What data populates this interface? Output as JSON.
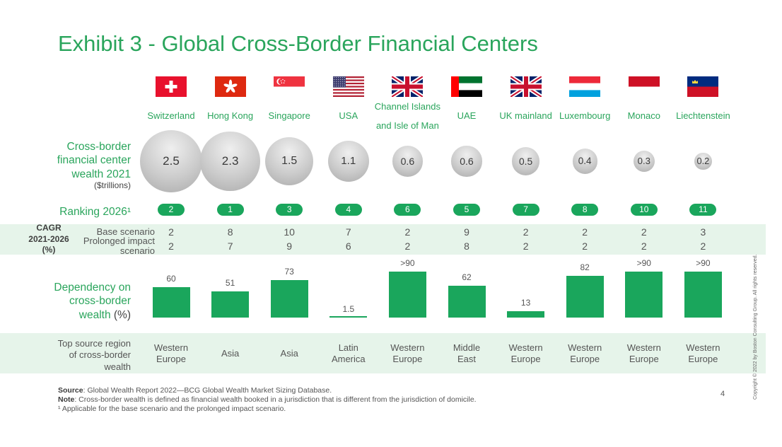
{
  "title": "Exhibit 3 - Global Cross-Border Financial Centers",
  "row_labels": {
    "wealth": [
      "Cross-border",
      "financial center",
      "wealth 2021"
    ],
    "wealth_unit": "($trillions)",
    "ranking": "Ranking 2026¹",
    "cagr": [
      "CAGR",
      "2021-2026",
      "(%)"
    ],
    "base_scenario": "Base scenario",
    "prolonged_scenario": [
      "Prolonged impact",
      "scenario"
    ],
    "dependency": [
      "Dependency on",
      "cross-border",
      "wealth"
    ],
    "dependency_unit": "(%)",
    "region": [
      "Top source region",
      "of cross-border",
      "wealth"
    ]
  },
  "colors": {
    "accent": "#2aa55c",
    "bar": "#1aa65c",
    "band": "#e6f4ea"
  },
  "chart_data": {
    "type": "table",
    "title": "Exhibit 3 - Global Cross-Border Financial Centers",
    "categories": [
      "Switzerland",
      "Hong Kong",
      "Singapore",
      "USA",
      "Channel Islands and Isle of Man",
      "UAE",
      "UK mainland",
      "Luxembourg",
      "Monaco",
      "Liechtenstein"
    ],
    "category_lines": [
      [
        "Switzerland"
      ],
      [
        "Hong Kong"
      ],
      [
        "Singapore"
      ],
      [
        "USA"
      ],
      [
        "Channel Islands",
        "and Isle of Man"
      ],
      [
        "UAE"
      ],
      [
        "UK mainland"
      ],
      [
        "Luxembourg"
      ],
      [
        "Monaco"
      ],
      [
        "Liechtenstein"
      ]
    ],
    "flags": [
      "switzerland",
      "hong-kong",
      "singapore",
      "usa",
      "uk",
      "uae",
      "uk",
      "luxembourg",
      "monaco",
      "liechtenstein"
    ],
    "wealth_2021": {
      "unit": "$ trillions",
      "values": [
        2.5,
        2.3,
        1.5,
        1.1,
        0.6,
        0.6,
        0.5,
        0.4,
        0.3,
        0.2
      ],
      "labels": [
        "2.5",
        "2.3",
        "1.5",
        "1.1",
        "0.6",
        "0.6",
        "0.5",
        "0.4",
        "0.3",
        "0.2"
      ]
    },
    "ranking_2026": [
      2,
      1,
      3,
      4,
      6,
      5,
      7,
      8,
      10,
      11
    ],
    "cagr_2021_2026": {
      "unit": "%",
      "series": [
        {
          "name": "Base scenario",
          "values": [
            2,
            8,
            10,
            7,
            2,
            9,
            2,
            2,
            2,
            3
          ]
        },
        {
          "name": "Prolonged impact scenario",
          "values": [
            2,
            7,
            9,
            6,
            2,
            8,
            2,
            2,
            2,
            2
          ]
        }
      ]
    },
    "dependency": {
      "type": "bar",
      "unit": "%",
      "values": [
        60,
        51,
        73,
        1.5,
        90,
        62,
        13,
        82,
        90,
        90
      ],
      "labels": [
        "60",
        "51",
        "73",
        "1.5",
        ">90",
        "62",
        "13",
        "82",
        ">90",
        ">90"
      ],
      "ylim": [
        0,
        100
      ]
    },
    "top_source_region": [
      [
        "Western",
        "Europe"
      ],
      [
        "Asia"
      ],
      [
        "Asia"
      ],
      [
        "Latin",
        "America"
      ],
      [
        "Western",
        "Europe"
      ],
      [
        "Middle",
        "East"
      ],
      [
        "Western",
        "Europe"
      ],
      [
        "Western",
        "Europe"
      ],
      [
        "Western",
        "Europe"
      ],
      [
        "Western",
        "Europe"
      ]
    ]
  },
  "footer": {
    "source_label": "Source",
    "source_text": ": Global Wealth Report 2022—BCG Global Wealth Market Sizing Database.",
    "note_label": "Note",
    "note_text": ": Cross-border wealth is defined as financial wealth booked in a jurisdiction that is different from the jurisdiction of domicile.",
    "footnote": "¹ Applicable for the base scenario and the prolonged impact scenario.",
    "page_number": "4",
    "copyright": "Copyright © 2022 by Boston Consulting Group. All rights reserved."
  }
}
